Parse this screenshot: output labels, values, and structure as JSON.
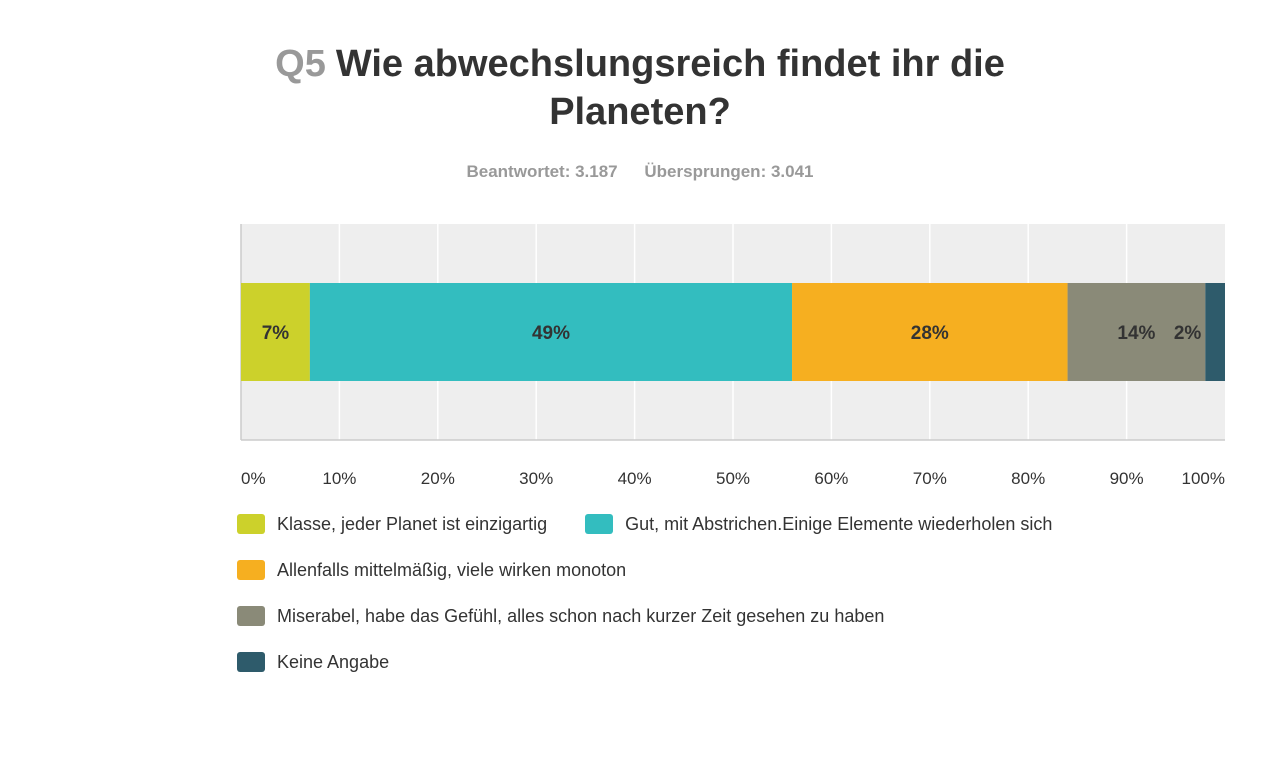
{
  "header": {
    "question_number": "Q5",
    "question_text": "Wie abwechslungsreich findet ihr die Planeten?",
    "answered_label": "Beantwortet: 3.187",
    "skipped_label": "Übersprungen: 3.041"
  },
  "chart_data": {
    "type": "bar",
    "orientation": "horizontal-stacked-100",
    "title": "",
    "xlabel": "",
    "ylabel": "",
    "xlim": [
      0,
      100
    ],
    "x_ticks": [
      "0%",
      "10%",
      "20%",
      "30%",
      "40%",
      "50%",
      "60%",
      "70%",
      "80%",
      "90%",
      "100%"
    ],
    "grid": true,
    "legend_position": "bottom",
    "series": [
      {
        "name": "Klasse, jeder Planet ist einzigartig",
        "value": 7,
        "label": "7%",
        "color": "#ccd12b"
      },
      {
        "name": "Gut, mit Abstrichen.Einige Elemente wiederholen sich",
        "value": 49,
        "label": "49%",
        "color": "#33bdbf"
      },
      {
        "name": "Allenfalls mittelmäßig, viele wirken monoton",
        "value": 28,
        "label": "28%",
        "color": "#f6af20"
      },
      {
        "name": "Miserabel, habe das Gefühl, alles schon nach kurzer Zeit gesehen zu haben",
        "value": 14,
        "label": "14%",
        "color": "#8a8a78"
      },
      {
        "name": "Keine Angabe",
        "value": 2,
        "label": "2%",
        "color": "#2e5b6b"
      }
    ]
  },
  "colors": {
    "plot_background": "#eeeeee",
    "gridline": "#ffffff",
    "axis": "#cccccc",
    "label_text": "#333333"
  }
}
